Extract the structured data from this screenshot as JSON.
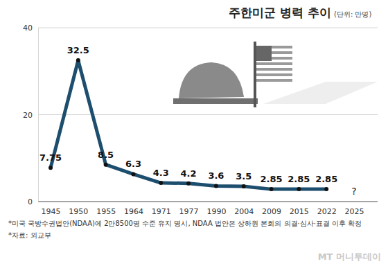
{
  "chart_data": {
    "type": "line",
    "title": "주한미군 병력 추이",
    "subtitle": "(단위: 만명)",
    "categories": [
      "1945",
      "1950",
      "1955",
      "1964",
      "1971",
      "1977",
      "1990",
      "2004",
      "2009",
      "2015",
      "2022",
      "2025"
    ],
    "values": [
      7.75,
      32.5,
      8.5,
      6.3,
      4.3,
      4.2,
      3.6,
      3.5,
      2.85,
      2.85,
      2.85,
      null
    ],
    "color": "#1d4e6e",
    "marker": "circle",
    "data_labels": true,
    "grid": true,
    "ylim": [
      0,
      40
    ],
    "yticks": [
      0,
      20,
      40
    ],
    "annotations": [
      {
        "x": "2025",
        "text": "?"
      }
    ],
    "notes": [
      "*미국 국방수권법안(NDAA)에 2만8500명 수준 유지 명시, NDAA 법안은 상하원 본회의 의결·심사·표결 이후 확정",
      "*자료: 외교부"
    ],
    "source_mark": "MT 머니투데이"
  }
}
